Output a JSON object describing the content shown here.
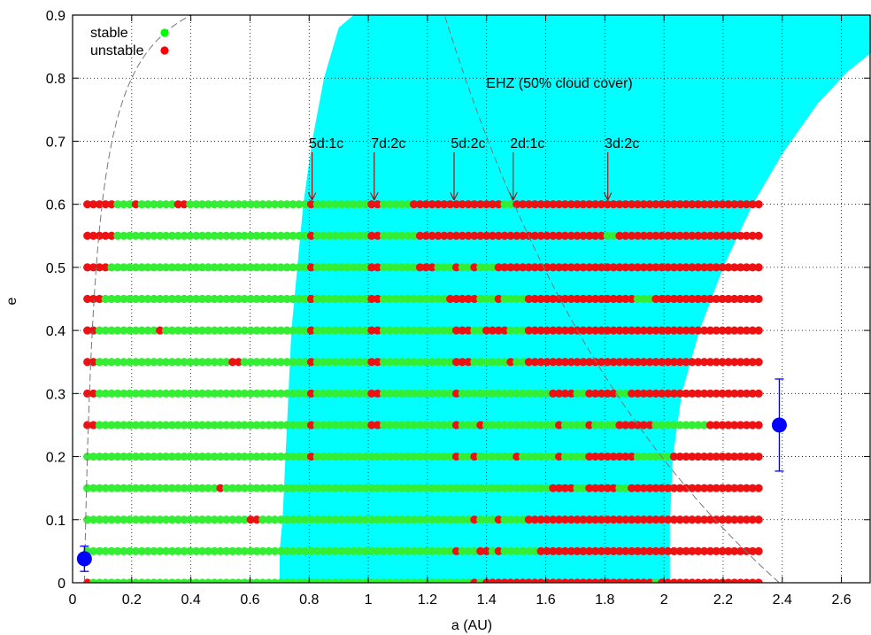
{
  "chart_data": {
    "type": "scatter",
    "xlabel": "a (AU)",
    "ylabel": "e",
    "xlim": [
      0,
      2.7
    ],
    "ylim": [
      0,
      0.9
    ],
    "x_ticks": [
      "0",
      "0.2",
      "0.4",
      "0.6",
      "0.8",
      "1",
      "1.2",
      "1.4",
      "1.6",
      "1.8",
      "2",
      "2.2",
      "2.4",
      "2.6"
    ],
    "y_ticks": [
      "0",
      "0.1",
      "0.2",
      "0.3",
      "0.4",
      "0.5",
      "0.6",
      "0.7",
      "0.8",
      "0.9"
    ],
    "grid": true,
    "legend": {
      "position": "top-left",
      "entries": [
        {
          "label": "stable",
          "color": "#00ff00"
        },
        {
          "label": "unstable",
          "color": "#ff0000"
        }
      ]
    },
    "colors": {
      "stable": "#33ee33",
      "unstable": "#ee1111",
      "ehz": "#00ffff",
      "planet": "#0000ff",
      "arrow": "#8b1a1a",
      "curve": "#777777"
    },
    "ehz_label": "EHZ (50% cloud cover)",
    "ehz_inner_edge": [
      [
        0.7,
        0
      ],
      [
        0.7,
        0.05
      ],
      [
        0.71,
        0.1
      ],
      [
        0.72,
        0.2
      ],
      [
        0.73,
        0.3
      ],
      [
        0.74,
        0.4
      ],
      [
        0.76,
        0.5
      ],
      [
        0.78,
        0.6
      ],
      [
        0.81,
        0.7
      ],
      [
        0.85,
        0.8
      ],
      [
        0.9,
        0.88
      ],
      [
        0.95,
        0.9
      ]
    ],
    "ehz_outer_edge": [
      [
        2.02,
        0
      ],
      [
        2.02,
        0.1
      ],
      [
        2.03,
        0.2
      ],
      [
        2.06,
        0.3
      ],
      [
        2.12,
        0.4
      ],
      [
        2.2,
        0.5
      ],
      [
        2.3,
        0.6
      ],
      [
        2.4,
        0.68
      ],
      [
        2.52,
        0.76
      ],
      [
        2.62,
        0.81
      ],
      [
        2.7,
        0.84
      ],
      [
        2.7,
        0.9
      ]
    ],
    "resonances": [
      {
        "label": "5d:1c",
        "a": 0.81
      },
      {
        "label": "7d:2c",
        "a": 1.02
      },
      {
        "label": "5d:2c",
        "a": 1.29
      },
      {
        "label": "2d:1c",
        "a": 1.49
      },
      {
        "label": "3d:2c",
        "a": 1.81
      }
    ],
    "rows": [
      {
        "e": 0.6,
        "points": 112,
        "unstable": [
          [
            0.05,
            0.15
          ],
          [
            0.2,
            0.22
          ],
          [
            0.34,
            0.38
          ],
          [
            0.8,
            0.82
          ],
          [
            1.01,
            1.04
          ],
          [
            1.14,
            1.46
          ],
          [
            1.5,
            2.33
          ]
        ]
      },
      {
        "e": 0.55,
        "points": 112,
        "unstable": [
          [
            0.05,
            0.15
          ],
          [
            0.8,
            0.82
          ],
          [
            1.01,
            1.04
          ],
          [
            1.16,
            1.8
          ],
          [
            1.84,
            2.33
          ]
        ]
      },
      {
        "e": 0.5,
        "points": 112,
        "unstable": [
          [
            0.05,
            0.12
          ],
          [
            0.8,
            0.82
          ],
          [
            1.01,
            1.04
          ],
          [
            1.17,
            1.23
          ],
          [
            1.29,
            1.31
          ],
          [
            1.34,
            1.36
          ],
          [
            1.43,
            2.33
          ]
        ]
      },
      {
        "e": 0.45,
        "points": 112,
        "unstable": [
          [
            0.05,
            0.1
          ],
          [
            0.8,
            0.82
          ],
          [
            1.01,
            1.04
          ],
          [
            1.27,
            1.36
          ],
          [
            1.44,
            1.46
          ],
          [
            1.54,
            1.9
          ],
          [
            1.96,
            2.33
          ]
        ]
      },
      {
        "e": 0.4,
        "points": 112,
        "unstable": [
          [
            0.05,
            0.08
          ],
          [
            0.28,
            0.31
          ],
          [
            0.8,
            0.82
          ],
          [
            1.01,
            1.04
          ],
          [
            1.28,
            1.34
          ],
          [
            1.38,
            1.48
          ],
          [
            1.53,
            2.33
          ]
        ]
      },
      {
        "e": 0.35,
        "points": 112,
        "unstable": [
          [
            0.05,
            0.08
          ],
          [
            0.54,
            0.57
          ],
          [
            0.8,
            0.82
          ],
          [
            1.01,
            1.04
          ],
          [
            1.28,
            1.34
          ],
          [
            1.4,
            1.42
          ],
          [
            1.47,
            1.5
          ],
          [
            1.54,
            2.33
          ]
        ]
      },
      {
        "e": 0.3,
        "points": 112,
        "unstable": [
          [
            0.05,
            0.08
          ],
          [
            0.8,
            0.82
          ],
          [
            1.01,
            1.04
          ],
          [
            1.29,
            1.31
          ],
          [
            1.61,
            1.69
          ],
          [
            1.73,
            1.84
          ],
          [
            1.88,
            2.33
          ]
        ]
      },
      {
        "e": 0.25,
        "points": 112,
        "unstable": [
          [
            0.05,
            0.08
          ],
          [
            0.8,
            0.82
          ],
          [
            1.01,
            1.04
          ],
          [
            1.29,
            1.31
          ],
          [
            1.37,
            1.39
          ],
          [
            1.63,
            1.66
          ],
          [
            1.74,
            1.76
          ],
          [
            1.84,
            1.97
          ],
          [
            2.14,
            2.33
          ]
        ]
      },
      {
        "e": 0.2,
        "points": 112,
        "unstable": [
          [
            0.8,
            0.82
          ],
          [
            1.29,
            1.31
          ],
          [
            1.34,
            1.36
          ],
          [
            1.49,
            1.51
          ],
          [
            1.63,
            1.66
          ],
          [
            1.74,
            1.91
          ],
          [
            2.03,
            2.33
          ]
        ]
      },
      {
        "e": 0.15,
        "points": 112,
        "unstable": [
          [
            0.49,
            0.52
          ],
          [
            1.61,
            1.7
          ],
          [
            1.73,
            1.84
          ],
          [
            1.88,
            2.33
          ]
        ]
      },
      {
        "e": 0.1,
        "points": 112,
        "unstable": [
          [
            0.6,
            0.63
          ],
          [
            1.34,
            1.36
          ],
          [
            1.43,
            1.45
          ],
          [
            1.54,
            2.33
          ]
        ]
      },
      {
        "e": 0.05,
        "points": 112,
        "unstable": [
          [
            1.29,
            1.31
          ],
          [
            1.36,
            1.38
          ],
          [
            1.39,
            1.41
          ],
          [
            1.44,
            1.46
          ],
          [
            1.57,
            2.33
          ]
        ]
      },
      {
        "e": 0.0,
        "points": 112,
        "unstable": [
          [
            0.05,
            0.07
          ],
          [
            1.34,
            1.36
          ],
          [
            1.38,
            1.96
          ],
          [
            1.99,
            2.33
          ]
        ]
      }
    ],
    "planets": [
      {
        "a": 0.04,
        "e": 0.038,
        "e_err": 0.02
      },
      {
        "a": 2.39,
        "e": 0.25,
        "e_err": 0.073
      }
    ],
    "crossing_curves": [
      {
        "planet_a": 0.04
      },
      {
        "planet_a": 2.39
      }
    ]
  }
}
